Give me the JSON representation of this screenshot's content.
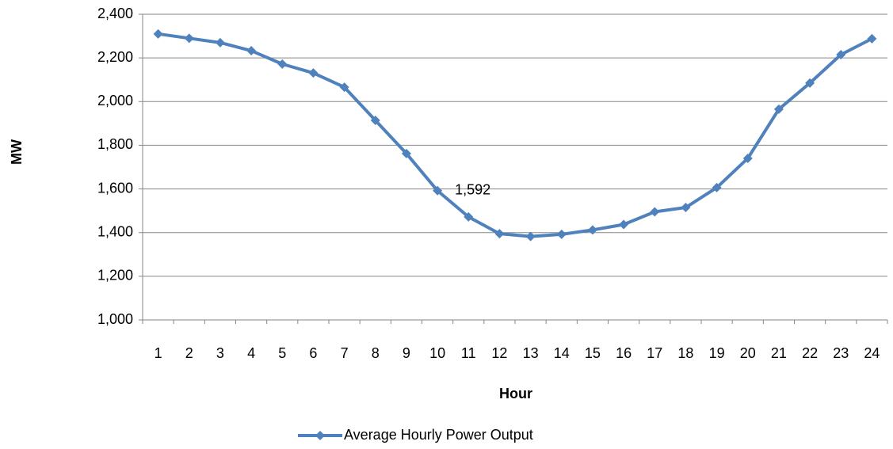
{
  "chart_data": {
    "type": "line",
    "x_label": "Hour",
    "y_label": "MW",
    "categories": [
      "1",
      "2",
      "3",
      "4",
      "5",
      "6",
      "7",
      "8",
      "9",
      "10",
      "11",
      "12",
      "13",
      "14",
      "15",
      "16",
      "17",
      "18",
      "19",
      "20",
      "21",
      "22",
      "23",
      "24"
    ],
    "series": [
      {
        "name": "Average Hourly Power Output",
        "color": "#4f81bd",
        "values": [
          2310,
          2290,
          2270,
          2233,
          2172,
          2131,
          2066,
          1914,
          1762,
          1592,
          1472,
          1395,
          1382,
          1392,
          1412,
          1437,
          1495,
          1515,
          1606,
          1740,
          1965,
          2085,
          2215,
          2288
        ],
        "value_labels": [
          null,
          null,
          null,
          null,
          null,
          null,
          null,
          null,
          null,
          "1,592",
          null,
          null,
          null,
          null,
          null,
          null,
          null,
          null,
          null,
          null,
          null,
          null,
          null,
          null
        ]
      }
    ],
    "ylim": [
      1000,
      2400
    ],
    "yticks": [
      {
        "value": 1000,
        "label": "1,000"
      },
      {
        "value": 1200,
        "label": "1,200"
      },
      {
        "value": 1400,
        "label": "1,400"
      },
      {
        "value": 1600,
        "label": "1,600"
      },
      {
        "value": 1800,
        "label": "1,800"
      },
      {
        "value": 2000,
        "label": "2,000"
      },
      {
        "value": 2200,
        "label": "2,200"
      },
      {
        "value": 2400,
        "label": "2,400"
      }
    ],
    "grid": true,
    "legend": "bottom"
  }
}
